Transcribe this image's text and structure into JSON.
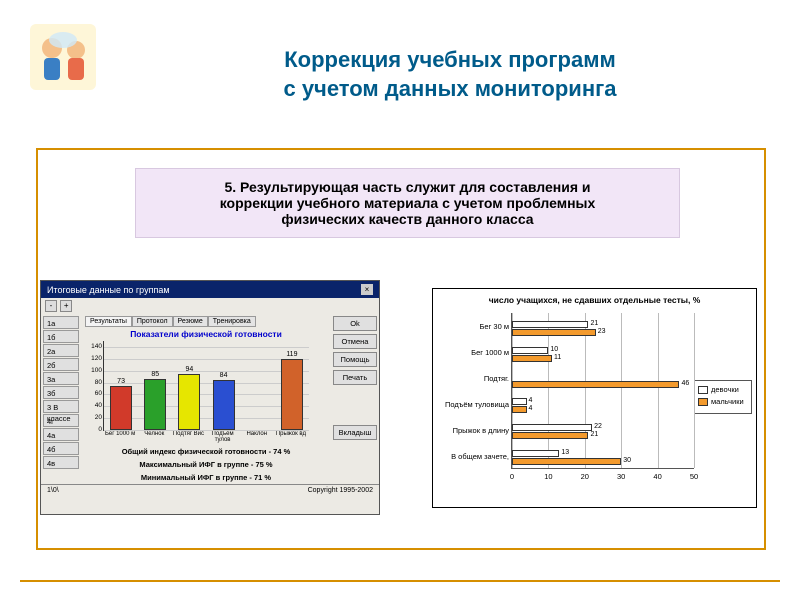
{
  "slide": {
    "title_line1": "Коррекция учебных программ",
    "title_line2": "с учетом данных мониторинга",
    "title_fontsize": 22,
    "title_color": "#005b8a",
    "frame_color": "#d68f00",
    "background": "#ffffff",
    "intro_box": {
      "bg": "#f2e6f7",
      "fontsize": 14,
      "line1": "5. Результирующая часть служит для составления и",
      "line2": "коррекции учебного материала с учетом проблемных",
      "line3": "физических качеств  данного класса"
    }
  },
  "left_panel": {
    "bg": "#eceae4",
    "title_bg": "#0a246a",
    "title": "Итоговые данные по группам",
    "zoom_minus": "-",
    "zoom_plus": "+",
    "side_rows": [
      "1а",
      "1б",
      "2а",
      "2б",
      "3а",
      "3б",
      "3 В классе",
      "4г",
      "4а",
      "4б",
      "4в"
    ],
    "tabs": [
      "Результаты",
      "Протокол",
      "Резюме",
      "Тренировка"
    ],
    "active_tab": 0,
    "chart_title": "Показатели физической готовности",
    "bar_chart": {
      "type": "bar",
      "ylim": [
        0,
        150
      ],
      "ytick_step": 20,
      "bars": [
        {
          "label": "Бег 1000 м",
          "value": 73,
          "color": "#d13a2a"
        },
        {
          "label": "Челнок",
          "value": 85,
          "color": "#2aa02a"
        },
        {
          "label": "Подтяг Вис",
          "value": 94,
          "color": "#e6e600"
        },
        {
          "label": "Подъём тулов",
          "value": 84,
          "color": "#2a4fd1"
        },
        {
          "label": "Наклон",
          "value": null,
          "color": "#a64fd1"
        },
        {
          "label": "Прыжок вд",
          "value": 119,
          "color": "#d1622a"
        }
      ],
      "grid_color": "#cccccc"
    },
    "foot1": "Общий индекс физической готовности - 74 %",
    "foot2": "Максимальный ИФГ в группе - 75 %",
    "foot3": "Минимальный ИФГ в группе - 71 %",
    "buttons": [
      "Ok",
      "Отмена",
      "Помощь",
      "Печать",
      "Вкладыш"
    ],
    "status_left": "1\\0\\",
    "status_right": "Copyright 1995-2002"
  },
  "right_chart": {
    "type": "grouped_horizontal_bar",
    "title": "число учащихся, не сдавших отдельные тесты, %",
    "xlim": [
      0,
      50
    ],
    "xtick_step": 10,
    "grid_color": "#bbbbbb",
    "categories": [
      "Бег 30 м",
      "Бег 1000 м",
      "Подтяг.",
      "Подъём туловища",
      "Прыжок в длину",
      "В общем зачете,"
    ],
    "series": [
      {
        "name": "девочки",
        "color": "#ffffff",
        "values": [
          21,
          10,
          null,
          4,
          22,
          13
        ]
      },
      {
        "name": "мальчики",
        "color": "#f39a2d",
        "values": [
          23,
          11,
          46,
          4,
          21,
          30
        ]
      }
    ],
    "value_fontsize": 7
  }
}
